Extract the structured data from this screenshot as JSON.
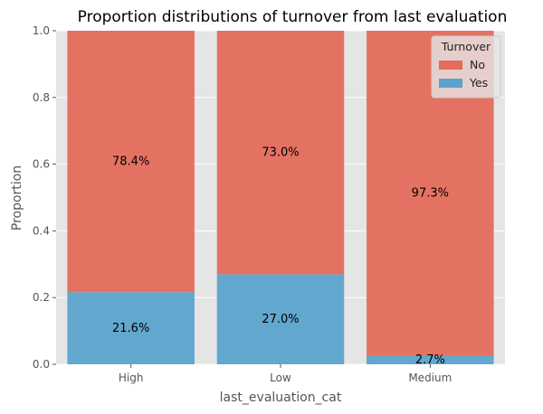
{
  "chart_data": {
    "type": "bar",
    "stacked": true,
    "title": "Proportion distributions of turnover from last evaluation",
    "xlabel": "last_evaluation_cat",
    "ylabel": "Proportion",
    "ylim": [
      0,
      1
    ],
    "yticks": [
      "0.0",
      "0.2",
      "0.4",
      "0.6",
      "0.8",
      "1.0"
    ],
    "categories": [
      "High",
      "Low",
      "Medium"
    ],
    "series": [
      {
        "name": "Yes",
        "values": [
          0.216,
          0.27,
          0.027
        ],
        "labels": [
          "21.6%",
          "27.0%",
          "2.7%"
        ],
        "color": "#5ba3cc"
      },
      {
        "name": "No",
        "values": [
          0.784,
          0.73,
          0.973
        ],
        "labels": [
          "78.4%",
          "73.0%",
          "97.3%"
        ],
        "color": "#e46c5c"
      }
    ],
    "legend": {
      "title": "Turnover",
      "placement": "top-right",
      "order": [
        "No",
        "Yes"
      ]
    },
    "grid": true,
    "background": "#e5e5e5"
  }
}
